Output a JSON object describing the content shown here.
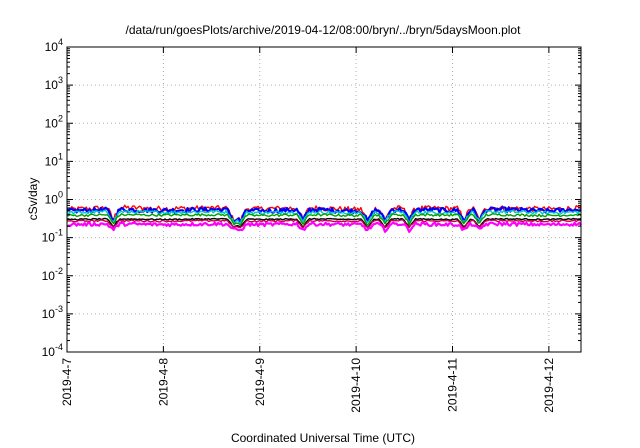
{
  "chart_data": {
    "type": "line",
    "title": "/data/run/goesPlots/archive/2019-04-12/08:00/bryn/../bryn/5daysMoon.plot",
    "xlabel": "Coordinated Universal Time (UTC)",
    "ylabel": "cSv/day",
    "y_scale": "log",
    "ylim": [
      0.0001,
      10000
    ],
    "y_ticks": [
      {
        "base": "10",
        "exp": "-4",
        "value": 0.0001
      },
      {
        "base": "10",
        "exp": "-3",
        "value": 0.001
      },
      {
        "base": "10",
        "exp": "-2",
        "value": 0.01
      },
      {
        "base": "10",
        "exp": "-1",
        "value": 0.1
      },
      {
        "base": "10",
        "exp": "0",
        "value": 1
      },
      {
        "base": "10",
        "exp": "1",
        "value": 10
      },
      {
        "base": "10",
        "exp": "2",
        "value": 100
      },
      {
        "base": "10",
        "exp": "3",
        "value": 1000
      },
      {
        "base": "10",
        "exp": "4",
        "value": 10000
      }
    ],
    "xlim": [
      "2019-04-07",
      "2019-04-12 08:00"
    ],
    "x_ticks": [
      "2019-4-7",
      "2019-4-8",
      "2019-4-9",
      "2019-4-10",
      "2019-4-11",
      "2019-4-12"
    ],
    "grid": true,
    "series": [
      {
        "color": "#ff0000",
        "x": [
          "2019-04-07",
          "2019-04-07 12:00",
          "2019-04-08",
          "2019-04-08 12:00",
          "2019-04-09",
          "2019-04-09 12:00",
          "2019-04-10",
          "2019-04-10 12:00",
          "2019-04-11",
          "2019-04-11 12:00",
          "2019-04-12",
          "2019-04-12 08:00"
        ],
        "values": [
          0.55,
          0.62,
          0.58,
          0.6,
          0.57,
          0.61,
          0.55,
          0.6,
          0.58,
          0.6,
          0.56,
          0.6
        ]
      },
      {
        "color": "#0000ff",
        "x": [
          "2019-04-07",
          "2019-04-07 12:00",
          "2019-04-08",
          "2019-04-08 12:00",
          "2019-04-09",
          "2019-04-09 12:00",
          "2019-04-10",
          "2019-04-10 12:00",
          "2019-04-11",
          "2019-04-11 12:00",
          "2019-04-12",
          "2019-04-12 08:00"
        ],
        "values": [
          0.5,
          0.55,
          0.52,
          0.55,
          0.5,
          0.55,
          0.5,
          0.55,
          0.52,
          0.55,
          0.5,
          0.55
        ]
      },
      {
        "color": "#00c8c8",
        "x": [
          "2019-04-07",
          "2019-04-07 12:00",
          "2019-04-08",
          "2019-04-08 12:00",
          "2019-04-09",
          "2019-04-09 12:00",
          "2019-04-10",
          "2019-04-10 12:00",
          "2019-04-11",
          "2019-04-11 12:00",
          "2019-04-12",
          "2019-04-12 08:00"
        ],
        "values": [
          0.45,
          0.48,
          0.46,
          0.48,
          0.45,
          0.48,
          0.44,
          0.47,
          0.45,
          0.48,
          0.45,
          0.47
        ]
      },
      {
        "color": "#00a000",
        "x": [
          "2019-04-07",
          "2019-04-07 12:00",
          "2019-04-08",
          "2019-04-08 12:00",
          "2019-04-09",
          "2019-04-09 12:00",
          "2019-04-10",
          "2019-04-10 12:00",
          "2019-04-11",
          "2019-04-11 12:00",
          "2019-04-12",
          "2019-04-12 08:00"
        ],
        "values": [
          0.38,
          0.4,
          0.39,
          0.4,
          0.38,
          0.4,
          0.38,
          0.4,
          0.39,
          0.4,
          0.38,
          0.4
        ]
      },
      {
        "color": "#000000",
        "x": [
          "2019-04-07",
          "2019-04-07 12:00",
          "2019-04-08",
          "2019-04-08 12:00",
          "2019-04-09",
          "2019-04-09 12:00",
          "2019-04-10",
          "2019-04-10 12:00",
          "2019-04-11",
          "2019-04-11 12:00",
          "2019-04-12",
          "2019-04-12 08:00"
        ],
        "values": [
          0.3,
          0.31,
          0.3,
          0.31,
          0.3,
          0.31,
          0.3,
          0.31,
          0.3,
          0.31,
          0.3,
          0.31
        ]
      },
      {
        "color": "#c80050",
        "x": [
          "2019-04-07",
          "2019-04-07 12:00",
          "2019-04-08",
          "2019-04-08 12:00",
          "2019-04-09",
          "2019-04-09 12:00",
          "2019-04-10",
          "2019-04-10 12:00",
          "2019-04-11",
          "2019-04-11 12:00",
          "2019-04-12",
          "2019-04-12 08:00"
        ],
        "values": [
          0.27,
          0.28,
          0.27,
          0.28,
          0.27,
          0.28,
          0.27,
          0.28,
          0.27,
          0.28,
          0.27,
          0.28
        ]
      },
      {
        "color": "#ff00ff",
        "x": [
          "2019-04-07",
          "2019-04-07 12:00",
          "2019-04-08",
          "2019-04-08 12:00",
          "2019-04-09",
          "2019-04-09 12:00",
          "2019-04-10",
          "2019-04-10 12:00",
          "2019-04-11",
          "2019-04-11 12:00",
          "2019-04-12",
          "2019-04-12 08:00"
        ],
        "values": [
          0.22,
          0.23,
          0.22,
          0.23,
          0.22,
          0.23,
          0.22,
          0.23,
          0.22,
          0.23,
          0.22,
          0.23
        ]
      }
    ]
  }
}
